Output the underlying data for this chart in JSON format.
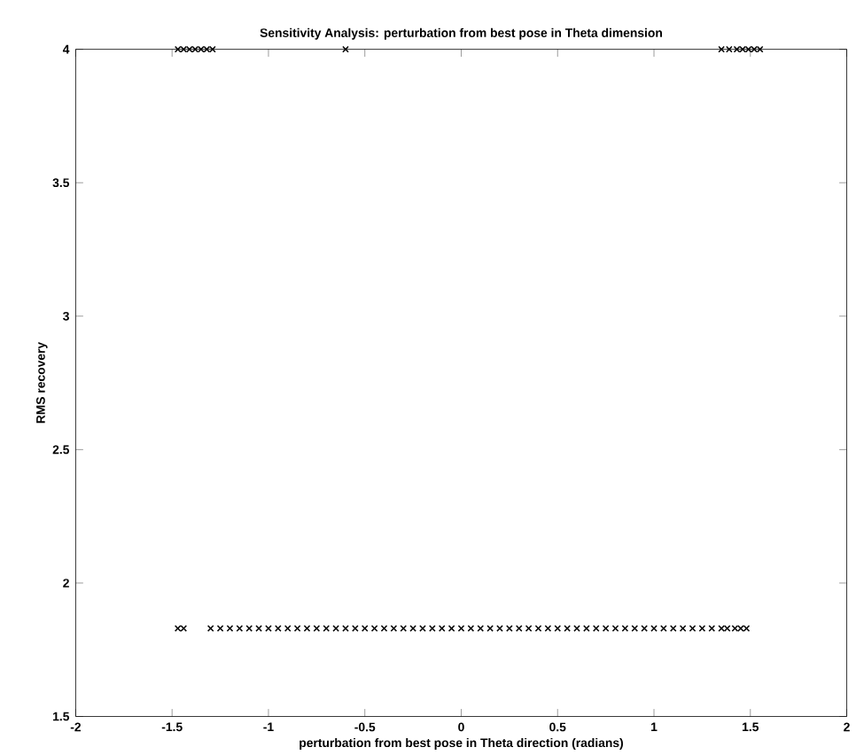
{
  "chart_data": {
    "type": "scatter",
    "title": "Sensitivity Analysis:  perturbation from best pose in Theta dimension",
    "xlabel": "perturbation from best pose in Theta direction (radians)",
    "ylabel": "RMS recovery",
    "series": [
      {
        "color": "#000000",
        "x": [
          -1.47,
          -1.44,
          -1.41,
          -1.38,
          -1.35,
          -1.32,
          -1.29,
          -0.6,
          1.35,
          1.39,
          1.43,
          1.46,
          1.49,
          1.52,
          1.55,
          -1.47,
          -1.44,
          -1.3,
          -1.25,
          -1.2,
          -1.15,
          -1.1,
          -1.05,
          -1.0,
          -0.95,
          -0.9,
          -0.85,
          -0.8,
          -0.75,
          -0.7,
          -0.65,
          -0.6,
          -0.55,
          -0.5,
          -0.45,
          -0.4,
          -0.35,
          -0.3,
          -0.25,
          -0.2,
          -0.15,
          -0.1,
          -0.05,
          0.0,
          0.05,
          0.1,
          0.15,
          0.2,
          0.25,
          0.3,
          0.35,
          0.4,
          0.45,
          0.5,
          0.55,
          0.6,
          0.65,
          0.7,
          0.75,
          0.8,
          0.85,
          0.9,
          0.95,
          1.0,
          1.05,
          1.1,
          1.15,
          1.2,
          1.25,
          1.3,
          1.35,
          1.38,
          1.42,
          1.45,
          1.48
        ],
        "values": [
          4,
          4,
          4,
          4,
          4,
          4,
          4,
          4,
          4,
          4,
          4,
          4,
          4,
          4,
          4,
          1.83,
          1.83,
          1.83,
          1.83,
          1.83,
          1.83,
          1.83,
          1.83,
          1.83,
          1.83,
          1.83,
          1.83,
          1.83,
          1.83,
          1.83,
          1.83,
          1.83,
          1.83,
          1.83,
          1.83,
          1.83,
          1.83,
          1.83,
          1.83,
          1.83,
          1.83,
          1.83,
          1.83,
          1.83,
          1.83,
          1.83,
          1.83,
          1.83,
          1.83,
          1.83,
          1.83,
          1.83,
          1.83,
          1.83,
          1.83,
          1.83,
          1.83,
          1.83,
          1.83,
          1.83,
          1.83,
          1.83,
          1.83,
          1.83,
          1.83,
          1.83,
          1.83,
          1.83,
          1.83,
          1.83,
          1.83,
          1.83,
          1.83,
          1.83,
          1.83
        ]
      }
    ],
    "marker": "cross",
    "xlim": [
      -2,
      2
    ],
    "xticks": [
      -2,
      -1.5,
      -1,
      -0.5,
      0,
      0.5,
      1,
      1.5,
      2
    ],
    "ylim": [
      1.5,
      4
    ],
    "yticks": [
      1.5,
      2,
      2.5,
      3,
      3.5,
      4
    ]
  }
}
